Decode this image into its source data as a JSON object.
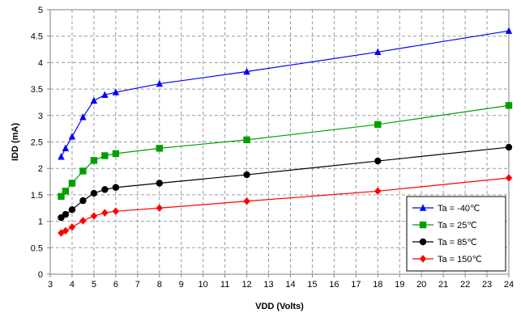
{
  "chart_data": {
    "type": "line",
    "title": "",
    "xlabel": "VDD (Volts)",
    "ylabel": "IDD (mA)",
    "xlim": [
      3,
      24
    ],
    "ylim": [
      0,
      5
    ],
    "x_ticks": [
      "3",
      "4",
      "5",
      "6",
      "7",
      "8",
      "9",
      "10",
      "11",
      "12",
      "13",
      "14",
      "15",
      "16",
      "17",
      "18",
      "19",
      "20",
      "21",
      "22",
      "23",
      "24"
    ],
    "y_ticks": [
      "0",
      "0.5",
      "1",
      "1.5",
      "2",
      "2.5",
      "3",
      "3.5",
      "4",
      "4.5",
      "5"
    ],
    "grid": true,
    "legend_position": "bottom-right",
    "series": [
      {
        "name": "Ta = -40℃",
        "color": "#0000ff",
        "marker": "triangle",
        "x": [
          3.5,
          3.7,
          4,
          4.5,
          5,
          5.5,
          6,
          8,
          12,
          18,
          24
        ],
        "y": [
          2.22,
          2.38,
          2.6,
          2.97,
          3.28,
          3.39,
          3.44,
          3.6,
          3.83,
          4.2,
          4.6
        ]
      },
      {
        "name": "Ta = 25℃",
        "color": "#00a000",
        "marker": "square",
        "x": [
          3.5,
          3.7,
          4,
          4.5,
          5,
          5.5,
          6,
          8,
          12,
          18,
          24
        ],
        "y": [
          1.47,
          1.57,
          1.72,
          1.95,
          2.15,
          2.24,
          2.28,
          2.38,
          2.54,
          2.83,
          3.19
        ]
      },
      {
        "name": "Ta = 85℃",
        "color": "#000000",
        "marker": "circle",
        "x": [
          3.5,
          3.7,
          4,
          4.5,
          5,
          5.5,
          6,
          8,
          12,
          18,
          24
        ],
        "y": [
          1.07,
          1.13,
          1.22,
          1.39,
          1.53,
          1.6,
          1.64,
          1.72,
          1.88,
          2.14,
          2.4
        ]
      },
      {
        "name": "Ta = 150℃",
        "color": "#ff0000",
        "marker": "diamond",
        "x": [
          3.5,
          3.7,
          4,
          4.5,
          5,
          5.5,
          6,
          8,
          12,
          18,
          24
        ],
        "y": [
          0.78,
          0.82,
          0.89,
          1.01,
          1.1,
          1.16,
          1.19,
          1.25,
          1.38,
          1.57,
          1.82
        ]
      }
    ]
  }
}
